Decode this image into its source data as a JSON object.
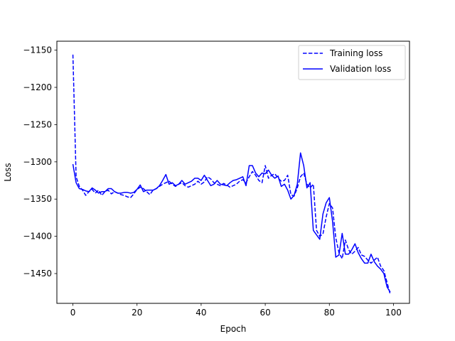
{
  "chart_data": {
    "type": "line",
    "title": "",
    "xlabel": "Epoch",
    "ylabel": "Loss",
    "xlim": [
      -5,
      105
    ],
    "ylim": [
      -1490,
      -1138
    ],
    "xticks": [
      0,
      20,
      40,
      60,
      80,
      100
    ],
    "yticks": [
      -1150,
      -1200,
      -1250,
      -1300,
      -1350,
      -1400,
      -1450
    ],
    "ytick_labels": [
      "−1150",
      "−1200",
      "−1250",
      "−1300",
      "−1350",
      "−1400",
      "−1450"
    ],
    "grid": false,
    "legend": "top-right",
    "x": [
      0,
      1,
      2,
      3,
      4,
      5,
      6,
      7,
      8,
      9,
      10,
      11,
      12,
      13,
      14,
      15,
      16,
      17,
      18,
      19,
      20,
      21,
      22,
      23,
      24,
      25,
      26,
      27,
      28,
      29,
      30,
      31,
      32,
      33,
      34,
      35,
      36,
      37,
      38,
      39,
      40,
      41,
      42,
      43,
      44,
      45,
      46,
      47,
      48,
      49,
      50,
      51,
      52,
      53,
      54,
      55,
      56,
      57,
      58,
      59,
      60,
      61,
      62,
      63,
      64,
      65,
      66,
      67,
      68,
      69,
      70,
      71,
      72,
      73,
      74,
      75,
      76,
      77,
      78,
      79,
      80,
      81,
      82,
      83,
      84,
      85,
      86,
      87,
      88,
      89,
      90,
      91,
      92,
      93,
      94,
      95,
      96,
      97,
      98,
      99
    ],
    "series": [
      {
        "name": "Training loss",
        "style": "dashed",
        "color": "#0000ff",
        "values": [
          -1156,
          -1320,
          -1333,
          -1338,
          -1345,
          -1340,
          -1337,
          -1342,
          -1338,
          -1345,
          -1340,
          -1338,
          -1343,
          -1340,
          -1342,
          -1344,
          -1345,
          -1347,
          -1348,
          -1343,
          -1337,
          -1334,
          -1336,
          -1340,
          -1344,
          -1338,
          -1336,
          -1333,
          -1330,
          -1328,
          -1326,
          -1330,
          -1333,
          -1330,
          -1328,
          -1332,
          -1334,
          -1332,
          -1330,
          -1326,
          -1330,
          -1327,
          -1320,
          -1323,
          -1328,
          -1330,
          -1332,
          -1329,
          -1331,
          -1334,
          -1332,
          -1330,
          -1326,
          -1324,
          -1328,
          -1320,
          -1313,
          -1318,
          -1325,
          -1328,
          -1305,
          -1322,
          -1318,
          -1316,
          -1322,
          -1326,
          -1325,
          -1318,
          -1344,
          -1346,
          -1335,
          -1320,
          -1315,
          -1330,
          -1335,
          -1330,
          -1392,
          -1400,
          -1397,
          -1374,
          -1356,
          -1362,
          -1402,
          -1422,
          -1430,
          -1405,
          -1418,
          -1424,
          -1420,
          -1415,
          -1425,
          -1427,
          -1432,
          -1436,
          -1432,
          -1428,
          -1440,
          -1446,
          -1462,
          -1478
        ]
      },
      {
        "name": "Validation loss",
        "style": "solid",
        "color": "#0000ff",
        "values": [
          -1303,
          -1328,
          -1336,
          -1337,
          -1339,
          -1340,
          -1335,
          -1338,
          -1342,
          -1340,
          -1340,
          -1336,
          -1336,
          -1340,
          -1342,
          -1342,
          -1341,
          -1341,
          -1342,
          -1341,
          -1337,
          -1331,
          -1340,
          -1338,
          -1338,
          -1338,
          -1336,
          -1332,
          -1325,
          -1317,
          -1330,
          -1328,
          -1332,
          -1330,
          -1325,
          -1330,
          -1328,
          -1326,
          -1322,
          -1322,
          -1325,
          -1318,
          -1325,
          -1332,
          -1330,
          -1325,
          -1330,
          -1331,
          -1332,
          -1328,
          -1325,
          -1324,
          -1322,
          -1320,
          -1332,
          -1305,
          -1305,
          -1315,
          -1320,
          -1315,
          -1316,
          -1311,
          -1318,
          -1322,
          -1319,
          -1333,
          -1330,
          -1338,
          -1350,
          -1345,
          -1330,
          -1288,
          -1305,
          -1335,
          -1328,
          -1392,
          -1398,
          -1404,
          -1370,
          -1355,
          -1348,
          -1380,
          -1428,
          -1425,
          -1396,
          -1424,
          -1424,
          -1418,
          -1410,
          -1422,
          -1430,
          -1436,
          -1436,
          -1424,
          -1434,
          -1440,
          -1444,
          -1450,
          -1468,
          -1475
        ]
      }
    ]
  }
}
